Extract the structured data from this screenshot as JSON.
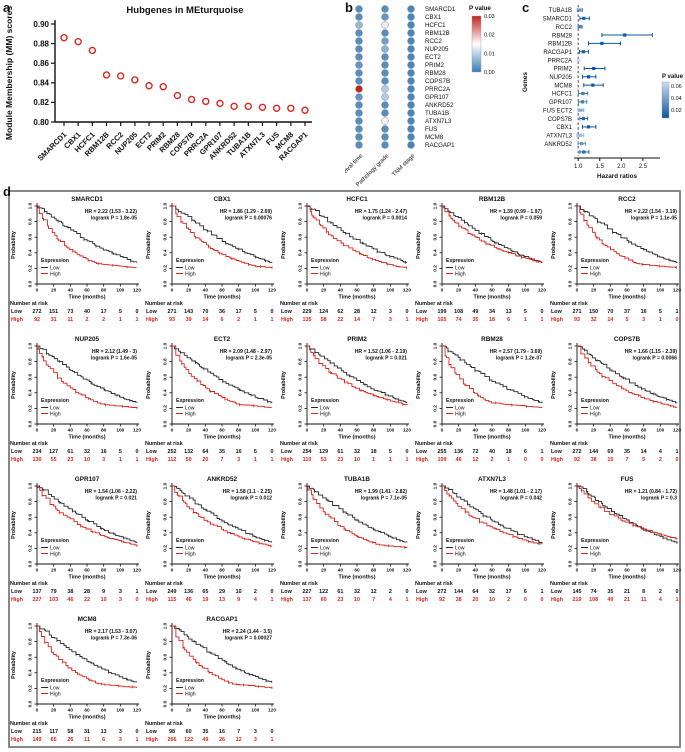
{
  "panels": {
    "a_label": "a",
    "b_label": "b",
    "c_label": "c",
    "d_label": "d"
  },
  "colors": {
    "scatter_point": "#e0261c",
    "km_low": "#2b2b2b",
    "km_high": "#d9261c",
    "dot_blue": "#3a7cb8",
    "dot_red": "#c3241c",
    "forest_dark": "#0d57a0",
    "forest_light": "#c9ddf0",
    "axis": "#111111"
  },
  "chart_data": [
    {
      "id": "mm_scatter",
      "type": "scatter",
      "title": "Hubgenes in MEturquoise",
      "ylabel": "Module Membership (MM) scores",
      "ylim": [
        0.8,
        0.9
      ],
      "yticks": [
        0.8,
        0.82,
        0.84,
        0.86,
        0.88,
        0.9
      ],
      "categories": [
        "SMARCD1",
        "CBX1",
        "HCFC1",
        "RBM12B",
        "RCC2",
        "NUP205",
        "ECT2",
        "PRIM2",
        "RBM28",
        "COPS7B",
        "PRRC2A",
        "GPR107",
        "ANKRD52",
        "TUBA1B",
        "ATXN7L3",
        "FUS",
        "MCM8",
        "RACGAP1"
      ],
      "values": [
        0.886,
        0.882,
        0.873,
        0.848,
        0.847,
        0.843,
        0.837,
        0.836,
        0.827,
        0.823,
        0.821,
        0.819,
        0.816,
        0.816,
        0.815,
        0.814,
        0.814,
        0.812
      ]
    },
    {
      "id": "pvalue_dotmatrix",
      "type": "heatmap",
      "columns": [
        "Survival time",
        "Pathology grade",
        "TNM stage"
      ],
      "genes": [
        "SMARCD1",
        "CBX1",
        "HCFC1",
        "RBM12B",
        "RCC2",
        "NUP205",
        "ECT2",
        "PRIM2",
        "RBM28",
        "COPS7B",
        "PRRC2A",
        "GPR107",
        "ANKRD52",
        "TUBA1B",
        "ATXN7L3",
        "FUS",
        "MCM8",
        "RACGAP1"
      ],
      "p_values": [
        [
          0.002,
          0.002,
          0.001
        ],
        [
          0.002,
          0.003,
          0.001
        ],
        [
          0.007,
          0.013,
          0.001
        ],
        [
          0.002,
          0.002,
          0.001
        ],
        [
          0.002,
          0.004,
          0.001
        ],
        [
          0.002,
          0.006,
          0.001
        ],
        [
          0.002,
          0.002,
          0.001
        ],
        [
          0.003,
          0.002,
          0.001
        ],
        [
          0.002,
          0.002,
          0.001
        ],
        [
          0.002,
          0.002,
          0.001
        ],
        [
          0.03,
          0.009,
          0.001
        ],
        [
          0.003,
          0.009,
          0.001
        ],
        [
          0.002,
          0.002,
          0.001
        ],
        [
          0.002,
          0.002,
          0.001
        ],
        [
          0.002,
          0.014,
          0.001
        ],
        [
          0.002,
          0.002,
          0.001
        ],
        [
          0.002,
          0.002,
          0.001
        ],
        [
          0.002,
          0.002,
          0.001
        ]
      ],
      "legend": {
        "title": "P value",
        "ticks": [
          "0.03",
          "0.02",
          "0.01",
          "0.00"
        ],
        "range": [
          0,
          0.03
        ]
      }
    },
    {
      "id": "hazard_forest",
      "type": "scatter",
      "xlabel": "Hazard ratios",
      "ylabel": "Genes",
      "xticks": [
        1.0,
        1.5,
        2.0,
        2.5
      ],
      "xlim": [
        0.95,
        2.85
      ],
      "ref_line": 1.0,
      "rows": [
        {
          "gene": "TUBA1B",
          "hr": 1.04,
          "lo": 0.98,
          "hi": 1.1,
          "p": 0.03
        },
        {
          "gene": "SMARCD1",
          "hr": 1.13,
          "lo": 1.04,
          "hi": 1.26,
          "p": 0.005
        },
        {
          "gene": "RCC2",
          "hr": 1.04,
          "lo": 1.0,
          "hi": 1.09,
          "p": 0.02
        },
        {
          "gene": "RBM28",
          "hr": 2.08,
          "lo": 1.55,
          "hi": 2.72,
          "p": 0.001
        },
        {
          "gene": "RBM12B",
          "hr": 1.55,
          "lo": 1.24,
          "hi": 1.98,
          "p": 0.001
        },
        {
          "gene": "RACGAP1",
          "hr": 1.12,
          "lo": 1.03,
          "hi": 1.24,
          "p": 0.005
        },
        {
          "gene": "PRRC2A",
          "hr": 1.01,
          "lo": 0.98,
          "hi": 1.04,
          "p": 0.065
        },
        {
          "gene": "PRIM2",
          "hr": 1.36,
          "lo": 1.14,
          "hi": 1.62,
          "p": 0.001
        },
        {
          "gene": "NUP205",
          "hr": 1.24,
          "lo": 1.1,
          "hi": 1.41,
          "p": 0.001
        },
        {
          "gene": "MCM8",
          "hr": 1.34,
          "lo": 1.13,
          "hi": 1.58,
          "p": 0.001
        },
        {
          "gene": "HCFC1",
          "hr": 1.11,
          "lo": 1.01,
          "hi": 1.22,
          "p": 0.02
        },
        {
          "gene": "GPR107",
          "hr": 1.1,
          "lo": 1.01,
          "hi": 1.2,
          "p": 0.02
        },
        {
          "gene": "FUS ECT2",
          "hr": 1.06,
          "lo": 1.0,
          "hi": 1.13,
          "p": 0.04
        },
        {
          "gene": "COPS7B",
          "hr": 1.12,
          "lo": 1.04,
          "hi": 1.22,
          "p": 0.008
        },
        {
          "gene": "CBX1",
          "hr": 1.24,
          "lo": 1.1,
          "hi": 1.41,
          "p": 0.002
        },
        {
          "gene": "ATXN7L3",
          "hr": 1.05,
          "lo": 0.97,
          "hi": 1.13,
          "p": 0.05
        },
        {
          "gene": "ANKRD52",
          "hr": 1.08,
          "lo": 1.0,
          "hi": 1.17,
          "p": 0.03
        },
        {
          "gene": "",
          "hr": 1.13,
          "lo": 1.04,
          "hi": 1.25,
          "p": 0.01
        }
      ],
      "legend": {
        "title": "P value",
        "ticks": [
          "0.06",
          "0.04",
          "0.02"
        ]
      }
    },
    {
      "id": "km_grid",
      "type": "line",
      "xlabel": "Time (months)",
      "ylabel": "Probability",
      "xticks": [
        0,
        20,
        40,
        60,
        80,
        100,
        120
      ],
      "yticks": [
        "0.0",
        "0.2",
        "0.4",
        "0.6",
        "0.8",
        "1.0"
      ],
      "legend_title": "Expression",
      "legend_items": [
        "Low",
        "High"
      ],
      "risk_header": "Number at risk",
      "risk_row_labels": [
        "Low",
        "High"
      ],
      "plots": [
        {
          "gene": "SMARCD1",
          "hr": 2.22,
          "hr_text": "HR = 2.22 (1.53 - 3.22)",
          "logrank_text": "logrank P = 1.8e-05",
          "risk_low": [
            272,
            151,
            73,
            40,
            17,
            5,
            0
          ],
          "risk_high": [
            92,
            31,
            11,
            2,
            2,
            1,
            1
          ]
        },
        {
          "gene": "CBX1",
          "hr": 1.86,
          "hr_text": "HR = 1.86 (1.29 - 2.69)",
          "logrank_text": "logrank P = 0.00076",
          "risk_low": [
            271,
            143,
            70,
            36,
            17,
            5,
            0
          ],
          "risk_high": [
            93,
            39,
            14,
            6,
            2,
            1,
            1
          ]
        },
        {
          "gene": "HCFC1",
          "hr": 1.75,
          "hr_text": "HR = 1.75 (1.24 - 2.47)",
          "logrank_text": "logrank P = 0.0014",
          "risk_low": [
            229,
            124,
            62,
            28,
            12,
            3,
            0
          ],
          "risk_high": [
            135,
            58,
            22,
            14,
            7,
            3,
            1
          ]
        },
        {
          "gene": "RBM12B",
          "hr": 1.39,
          "hr_text": "HR = 1.39 (0.99 - 1.97)",
          "logrank_text": "logrank P = 0.059",
          "risk_low": [
            199,
            108,
            49,
            34,
            13,
            5,
            0
          ],
          "risk_high": [
            165,
            74,
            35,
            18,
            6,
            1,
            1
          ]
        },
        {
          "gene": "RCC2",
          "hr": 2.22,
          "hr_text": "HR = 2.22 (1.54 - 3.19)",
          "logrank_text": "logrank P = 1.1e-05",
          "risk_low": [
            271,
            150,
            70,
            37,
            16,
            5,
            1
          ],
          "risk_high": [
            93,
            32,
            14,
            5,
            3,
            1,
            0
          ]
        },
        {
          "gene": "NUP205",
          "hr": 2.12,
          "hr_text": "HR = 2.12 (1.49 - 3)",
          "logrank_text": "logrank P = 1.6e-05",
          "risk_low": [
            234,
            127,
            61,
            32,
            16,
            5,
            0
          ],
          "risk_high": [
            130,
            55,
            23,
            10,
            3,
            1,
            1
          ]
        },
        {
          "gene": "ECT2",
          "hr": 2.09,
          "hr_text": "HR = 2.09 (1.48 - 2.97)",
          "logrank_text": "logrank P = 2.3e-05",
          "risk_low": [
            252,
            132,
            64,
            35,
            16,
            5,
            0
          ],
          "risk_high": [
            112,
            50,
            20,
            7,
            3,
            1,
            1
          ]
        },
        {
          "gene": "PRIM2",
          "hr": 1.52,
          "hr_text": "HR = 1.52 (1.06 - 2.19)",
          "logrank_text": "logrank P = 0.021",
          "risk_low": [
            254,
            129,
            61,
            32,
            18,
            5,
            0
          ],
          "risk_high": [
            110,
            53,
            23,
            10,
            1,
            1,
            1
          ]
        },
        {
          "gene": "RBM28",
          "hr": 2.57,
          "hr_text": "HR = 2.57 (1.79 - 3.69)",
          "logrank_text": "logrank P = 1.2e-07",
          "risk_low": [
            255,
            136,
            72,
            40,
            18,
            6,
            1
          ],
          "risk_high": [
            109,
            46,
            12,
            2,
            1,
            0,
            0
          ]
        },
        {
          "gene": "COPS7B",
          "hr": 1.66,
          "hr_text": "HR = 1.66 (1.15 - 2.39)",
          "logrank_text": "logrank P = 0.0066",
          "risk_low": [
            272,
            144,
            69,
            35,
            14,
            4,
            1
          ],
          "risk_high": [
            92,
            38,
            15,
            7,
            5,
            2,
            0
          ]
        },
        {
          "gene": "GPR107",
          "hr": 1.54,
          "hr_text": "HR = 1.54 (1.06 - 2.22)",
          "logrank_text": "logrank P = 0.021",
          "risk_low": [
            137,
            79,
            38,
            28,
            9,
            3,
            1
          ],
          "risk_high": [
            227,
            103,
            46,
            22,
            10,
            3,
            0
          ]
        },
        {
          "gene": "ANKRD52",
          "hr": 1.58,
          "hr_text": "HR = 1.58 (1.1 - 2.25)",
          "logrank_text": "logrank P = 0.012",
          "risk_low": [
            249,
            136,
            65,
            29,
            10,
            2,
            0
          ],
          "risk_high": [
            115,
            46,
            19,
            13,
            9,
            4,
            1
          ]
        },
        {
          "gene": "TUBA1B",
          "hr": 1.99,
          "hr_text": "HR = 1.99 (1.41 - 2.82)",
          "logrank_text": "logrank P = 7.1e-05",
          "risk_low": [
            227,
            122,
            61,
            32,
            12,
            2,
            0
          ],
          "risk_high": [
            137,
            60,
            23,
            10,
            7,
            4,
            1
          ]
        },
        {
          "gene": "ATXN7L3",
          "hr": 1.48,
          "hr_text": "HR = 1.48 (1.01 - 2.17)",
          "logrank_text": "logrank P = 0.042",
          "risk_low": [
            272,
            144,
            64,
            32,
            17,
            6,
            1
          ],
          "risk_high": [
            92,
            38,
            20,
            10,
            2,
            0,
            0
          ]
        },
        {
          "gene": "FUS",
          "hr": 1.21,
          "hr_text": "HR = 1.21 (0.84 - 1.72)",
          "logrank_text": "logrank P = 0.3",
          "risk_low": [
            145,
            74,
            35,
            21,
            8,
            2,
            0
          ],
          "risk_high": [
            219,
            108,
            49,
            21,
            11,
            4,
            1
          ]
        },
        {
          "gene": "MCM8",
          "hr": 2.17,
          "hr_text": "HR = 2.17 (1.53 - 3.07)",
          "logrank_text": "logrank P = 7.3e-06",
          "risk_low": [
            215,
            117,
            58,
            31,
            13,
            3,
            0
          ],
          "risk_high": [
            149,
            65,
            26,
            11,
            6,
            3,
            1
          ]
        },
        {
          "gene": "RACGAP1",
          "hr": 2.24,
          "hr_text": "HR = 2.24 (1.44 - 3.5)",
          "logrank_text": "logrank P = 0.00027",
          "risk_low": [
            98,
            60,
            35,
            16,
            7,
            3,
            0
          ],
          "risk_high": [
            266,
            122,
            49,
            26,
            12,
            3,
            1
          ]
        }
      ]
    }
  ]
}
